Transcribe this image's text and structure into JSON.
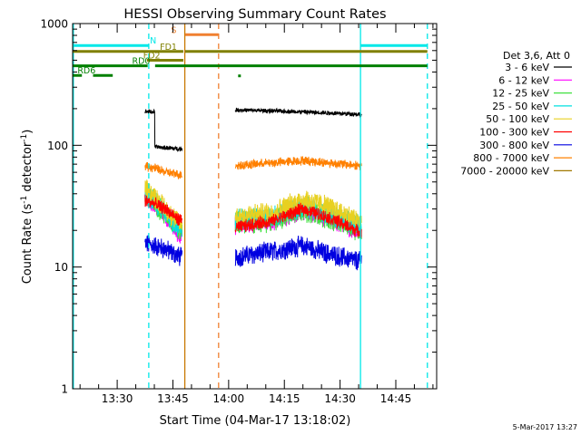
{
  "chart_data": {
    "type": "line",
    "title": "HESSI Observing Summary Count Rates",
    "xlabel": "Start Time (04-Mar-17 13:18:02)",
    "ylabel": "Count Rate (s⁻¹ detector⁻¹)",
    "yscale": "log",
    "ylim": [
      1,
      1000
    ],
    "xlim_minutes_of_day": [
      798,
      896
    ],
    "yticks": [
      {
        "value": 1,
        "label": "1"
      },
      {
        "value": 10,
        "label": "10"
      },
      {
        "value": 100,
        "label": "100"
      },
      {
        "value": 1000,
        "label": "1000"
      }
    ],
    "xticks": [
      {
        "value": 810,
        "label": "13:30"
      },
      {
        "value": 825,
        "label": "13:45"
      },
      {
        "value": 840,
        "label": "14:00"
      },
      {
        "value": 855,
        "label": "14:15"
      },
      {
        "value": 870,
        "label": "14:30"
      },
      {
        "value": 885,
        "label": "14:45"
      }
    ],
    "legend_header": "Det 3,6, Att 0",
    "legend_placement": "right",
    "series": [
      {
        "name": "3 - 6 keV",
        "color": "#000000",
        "seg1": [
          [
            817.5,
            190
          ],
          [
            819.8,
            188
          ],
          [
            820.1,
            97
          ],
          [
            827.5,
            93
          ]
        ],
        "seg2": [
          [
            841.8,
            195
          ],
          [
            852,
            192
          ],
          [
            864,
            186
          ],
          [
            875,
            180
          ],
          [
            875.8,
            175
          ]
        ],
        "noise": 0.012
      },
      {
        "name": "6 - 12 keV",
        "color": "#ff00ff",
        "seg1": [
          [
            817.5,
            38
          ],
          [
            820,
            32
          ],
          [
            823,
            26
          ],
          [
            826,
            19
          ],
          [
            827.5,
            18
          ]
        ],
        "seg2": [
          [
            841.8,
            22
          ],
          [
            852,
            24
          ],
          [
            860,
            28
          ],
          [
            866,
            25
          ],
          [
            875.8,
            19
          ]
        ],
        "noise": 0.05
      },
      {
        "name": "12 - 25 keV",
        "color": "#40e040",
        "seg1": [
          [
            817.5,
            40
          ],
          [
            820,
            34
          ],
          [
            823,
            27
          ],
          [
            826,
            21
          ],
          [
            827.5,
            20
          ]
        ],
        "seg2": [
          [
            841.8,
            23
          ],
          [
            852,
            24
          ],
          [
            860,
            30
          ],
          [
            866,
            26
          ],
          [
            875.8,
            20
          ]
        ],
        "noise": 0.065
      },
      {
        "name": "25 - 50 keV",
        "color": "#00e0e0",
        "seg1": [
          [
            817.5,
            40
          ],
          [
            820,
            35
          ],
          [
            823,
            28
          ],
          [
            826,
            22
          ],
          [
            827.5,
            21
          ]
        ],
        "seg2": [
          [
            841.8,
            24
          ],
          [
            852,
            26
          ],
          [
            860,
            32
          ],
          [
            866,
            28
          ],
          [
            875.8,
            21
          ]
        ],
        "noise": 0.06
      },
      {
        "name": "50 - 100 keV",
        "color": "#e8d020",
        "seg1": [
          [
            817.5,
            45
          ],
          [
            820,
            38
          ],
          [
            823,
            30
          ],
          [
            826,
            24
          ],
          [
            827.5,
            23
          ]
        ],
        "seg2": [
          [
            841.8,
            26
          ],
          [
            852,
            28
          ],
          [
            860,
            36
          ],
          [
            866,
            32
          ],
          [
            875.8,
            23
          ]
        ],
        "noise": 0.06
      },
      {
        "name": "100 - 300 keV",
        "color": "#ff0000",
        "seg1": [
          [
            817.5,
            35
          ],
          [
            820,
            33
          ],
          [
            823,
            30
          ],
          [
            826,
            25
          ],
          [
            827.5,
            24
          ]
        ],
        "seg2": [
          [
            841.8,
            21
          ],
          [
            852,
            24
          ],
          [
            860,
            30
          ],
          [
            866,
            26
          ],
          [
            875.8,
            19
          ]
        ],
        "noise": 0.035
      },
      {
        "name": "300 - 800 keV",
        "color": "#0000e0",
        "seg1": [
          [
            817.5,
            15.5
          ],
          [
            820,
            15
          ],
          [
            823,
            14
          ],
          [
            826,
            12.5
          ],
          [
            827.5,
            12
          ]
        ],
        "seg2": [
          [
            841.8,
            12
          ],
          [
            852,
            13.5
          ],
          [
            860,
            15
          ],
          [
            866,
            13
          ],
          [
            875.8,
            11
          ]
        ],
        "noise": 0.055
      },
      {
        "name": "800 - 7000 keV",
        "color": "#ff8000",
        "seg1": [
          [
            817.5,
            67
          ],
          [
            820,
            65
          ],
          [
            823,
            60
          ],
          [
            826,
            58
          ],
          [
            827.5,
            57
          ]
        ],
        "seg2": [
          [
            841.8,
            68
          ],
          [
            852,
            72
          ],
          [
            860,
            75
          ],
          [
            866,
            72
          ],
          [
            875.8,
            68
          ]
        ],
        "noise": 0.025
      },
      {
        "name": "7000 - 20000 keV",
        "color": "#a07800",
        "seg1": [],
        "seg2": [],
        "noise": 0
      }
    ],
    "flag_bars": [
      {
        "label": "N",
        "color": "#00e8e8",
        "level": 660,
        "ranges": [
          [
            798,
            818.5
          ],
          [
            875.5,
            893.5
          ]
        ],
        "label_at": 818.8
      },
      {
        "label": "S",
        "color": "#f08030",
        "level": 810,
        "ranges": [
          [
            828.3,
            837.3
          ]
        ],
        "label_at": 824.5
      },
      {
        "label": "FD1",
        "color": "#808000",
        "level": 590,
        "ranges": [
          [
            798,
            827.8
          ],
          [
            828.3,
            893.5
          ]
        ],
        "label_at": 821.5
      },
      {
        "label": "FD2",
        "color": "#808000",
        "level": 500,
        "ranges": [
          [
            818,
            827.8
          ]
        ],
        "label_at": 817
      },
      {
        "label": "RD0",
        "color": "#008000",
        "level": 450,
        "ranges": [
          [
            798,
            818.2
          ],
          [
            820.2,
            893.5
          ]
        ],
        "label_at": 814
      },
      {
        "label": "RD6",
        "color": "#008000",
        "level": 375,
        "ranges": [
          [
            798,
            800.5
          ],
          [
            803.5,
            808.8
          ]
        ],
        "label_at": 799.3
      }
    ],
    "vertical_markers": [
      {
        "x": 798.2,
        "color": "#00e8e8",
        "style": "solid"
      },
      {
        "x": 818.5,
        "color": "#00e8e8",
        "style": "dashed"
      },
      {
        "x": 828.2,
        "color": "#c87800",
        "style": "solid"
      },
      {
        "x": 837.3,
        "color": "#f08030",
        "style": "dashed"
      },
      {
        "x": 875.5,
        "color": "#00e8e8",
        "style": "solid"
      },
      {
        "x": 893.5,
        "color": "#00e8e8",
        "style": "dashed"
      }
    ],
    "footer": "5-Mar-2017 13:27"
  }
}
